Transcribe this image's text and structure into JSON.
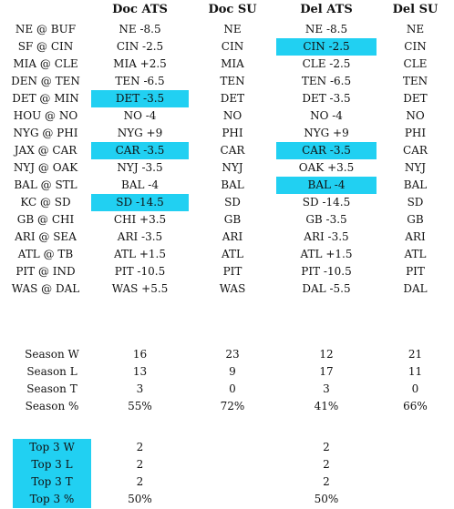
{
  "headers": [
    "Doc ATS",
    "Doc SU",
    "Del ATS",
    "Del SU"
  ],
  "games": [
    {
      "matchup": "NE @ BUF",
      "doc_ats": "NE -8.5",
      "doc_su": "NE",
      "del_ats": "NE -8.5",
      "del_su": "NE"
    },
    {
      "matchup": "SF @ CIN",
      "doc_ats": "CIN -2.5",
      "doc_su": "CIN",
      "del_ats": "CIN -2.5",
      "del_su": "CIN"
    },
    {
      "matchup": "MIA @ CLE",
      "doc_ats": "MIA +2.5",
      "doc_su": "MIA",
      "del_ats": "CLE -2.5",
      "del_su": "CLE"
    },
    {
      "matchup": "DEN @ TEN",
      "doc_ats": "TEN -6.5",
      "doc_su": "TEN",
      "del_ats": "TEN -6.5",
      "del_su": "TEN"
    },
    {
      "matchup": "DET @ MIN",
      "doc_ats": "DET -3.5",
      "doc_su": "DET",
      "del_ats": "DET -3.5",
      "del_su": "DET"
    },
    {
      "matchup": "HOU @ NO",
      "doc_ats": "NO -4",
      "doc_su": "NO",
      "del_ats": "NO -4",
      "del_su": "NO"
    },
    {
      "matchup": "NYG @ PHI",
      "doc_ats": "NYG +9",
      "doc_su": "PHI",
      "del_ats": "NYG +9",
      "del_su": "PHI"
    },
    {
      "matchup": "JAX @ CAR",
      "doc_ats": "CAR -3.5",
      "doc_su": "CAR",
      "del_ats": "CAR -3.5",
      "del_su": "CAR"
    },
    {
      "matchup": "NYJ @ OAK",
      "doc_ats": "NYJ -3.5",
      "doc_su": "NYJ",
      "del_ats": "OAK +3.5",
      "del_su": "NYJ"
    },
    {
      "matchup": "BAL @ STL",
      "doc_ats": "BAL -4",
      "doc_su": "BAL",
      "del_ats": "BAL -4",
      "del_su": "BAL"
    },
    {
      "matchup": "KC @ SD",
      "doc_ats": "SD -14.5",
      "doc_su": "SD",
      "del_ats": "SD -14.5",
      "del_su": "SD"
    },
    {
      "matchup": "GB @ CHI",
      "doc_ats": "CHI +3.5",
      "doc_su": "GB",
      "del_ats": "GB -3.5",
      "del_su": "GB"
    },
    {
      "matchup": "ARI @ SEA",
      "doc_ats": "ARI -3.5",
      "doc_su": "ARI",
      "del_ats": "ARI -3.5",
      "del_su": "ARI"
    },
    {
      "matchup": "ATL @ TB",
      "doc_ats": "ATL +1.5",
      "doc_su": "ATL",
      "del_ats": "ATL +1.5",
      "del_su": "ATL"
    },
    {
      "matchup": "PIT @ IND",
      "doc_ats": "PIT -10.5",
      "doc_su": "PIT",
      "del_ats": "PIT -10.5",
      "del_su": "PIT"
    },
    {
      "matchup": "WAS @ DAL",
      "doc_ats": "WAS +5.5",
      "doc_su": "WAS",
      "del_ats": "DAL -5.5",
      "del_su": "DAL"
    }
  ],
  "season": [
    {
      "label": "Season W",
      "doc_ats": "16",
      "doc_su": "23",
      "del_ats": "12",
      "del_su": "21"
    },
    {
      "label": "Season L",
      "doc_ats": "13",
      "doc_su": "9",
      "del_ats": "17",
      "del_su": "11"
    },
    {
      "label": "Season T",
      "doc_ats": "3",
      "doc_su": "0",
      "del_ats": "3",
      "del_su": "0"
    },
    {
      "label": "Season %",
      "doc_ats": "55%",
      "doc_su": "72%",
      "del_ats": "41%",
      "del_su": "66%"
    }
  ],
  "top3": [
    {
      "label": "Top 3 W",
      "doc_ats": "2",
      "del_ats": "2"
    },
    {
      "label": "Top 3 L",
      "doc_ats": "2",
      "del_ats": "2"
    },
    {
      "label": "Top 3 T",
      "doc_ats": "2",
      "del_ats": "2"
    },
    {
      "label": "Top 3 %",
      "doc_ats": "50%",
      "del_ats": "50%"
    }
  ],
  "colors": {
    "highlight": "#21d0f2"
  }
}
